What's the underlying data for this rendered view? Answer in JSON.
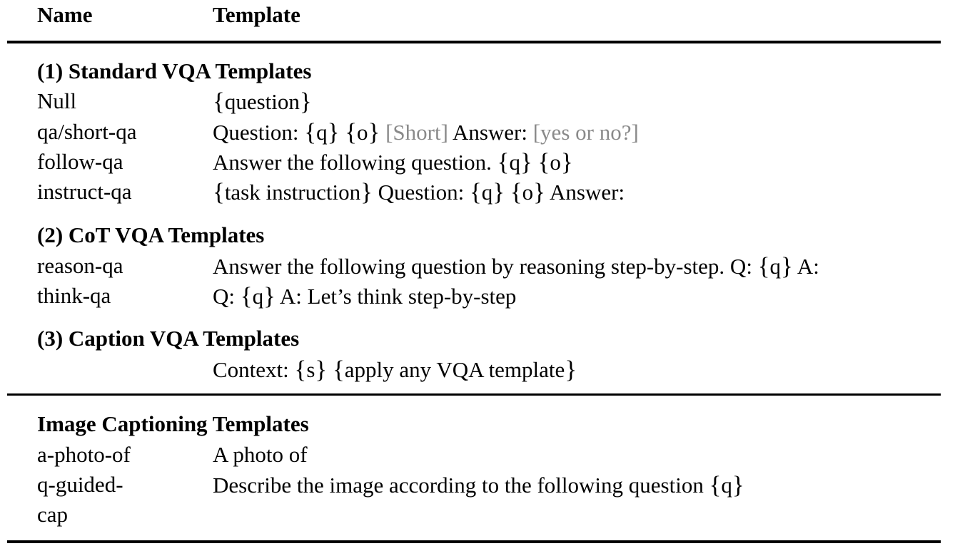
{
  "header": {
    "name": "Name",
    "template": "Template"
  },
  "sections": [
    {
      "title": "(1) Standard VQA Templates",
      "rows": [
        {
          "name": "Null"
        },
        {
          "name": "qa/short-qa",
          "question_prefix": "Question:",
          "short": "[Short]",
          "answer_label": "Answer:",
          "yes_no": "[yes or no?]"
        },
        {
          "name": "follow-qa",
          "text": "Answer the following question."
        },
        {
          "name": "instruct-qa",
          "question_prefix": "Question:",
          "answer_label": "Answer:"
        }
      ]
    },
    {
      "title": "(2) CoT VQA Templates",
      "rows": [
        {
          "name": "reason-qa",
          "prefix": "Answer the following question by reasoning step-by-step. Q:",
          "suffix": "A:"
        },
        {
          "name": "think-qa",
          "prefix": "Q:",
          "suffix": "A: Let’s think step-by-step"
        }
      ]
    },
    {
      "title": "(3) Caption VQA Templates",
      "rows": [
        {
          "name": "",
          "prefix": "Context:"
        }
      ]
    },
    {
      "title": "Image Captioning Templates",
      "rows": [
        {
          "name": "a-photo-of",
          "text": "A photo of"
        },
        {
          "name_line1": "q-guided-",
          "name_line2": "cap",
          "text": "Describe the image according to the following question"
        }
      ]
    }
  ],
  "vars": {
    "question": "question",
    "q": "q",
    "o": "o",
    "s": "s",
    "task_instruction": "task instruction",
    "apply_any": "apply any VQA template"
  }
}
